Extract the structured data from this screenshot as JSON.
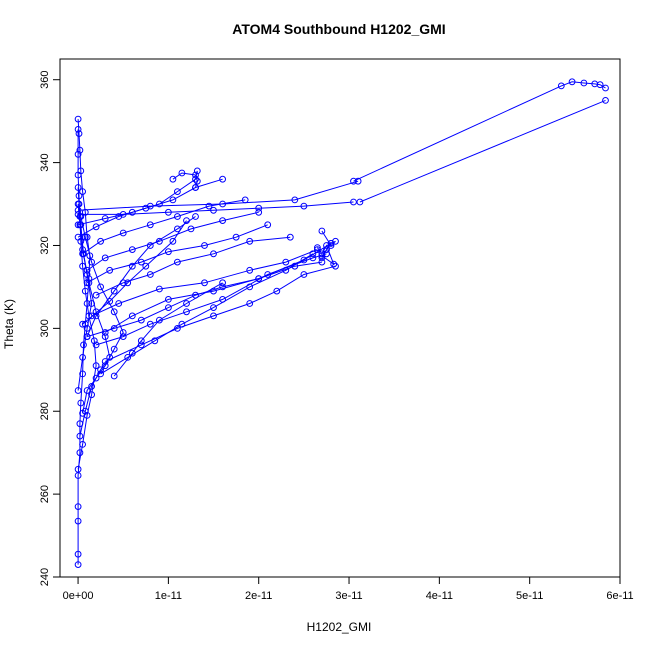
{
  "chart_data": {
    "type": "line",
    "title": "ATOM4 Southbound H1202_GMI",
    "xlabel": "H1202_GMI",
    "ylabel": "Theta (K)",
    "xlim": [
      -2e-12,
      6e-11
    ],
    "ylim": [
      240,
      365
    ],
    "x_ticks": [
      0,
      1e-11,
      2e-11,
      3e-11,
      4e-11,
      5e-11,
      6e-11
    ],
    "x_tick_labels": [
      "0e+00",
      "1e-11",
      "2e-11",
      "3e-11",
      "4e-11",
      "5e-11",
      "6e-11"
    ],
    "y_ticks": [
      240,
      260,
      280,
      300,
      320,
      340,
      360
    ],
    "y_tick_labels": [
      "240",
      "260",
      "280",
      "300",
      "320",
      "340",
      "360"
    ],
    "marker": "open-circle",
    "grid": false,
    "color": "#0000ff",
    "series": [
      {
        "points": [
          [
            0.0,
            243.0
          ],
          [
            0.0,
            245.5
          ],
          [
            0.0,
            253.5
          ],
          [
            0.0,
            257.0
          ],
          [
            0.0,
            264.5
          ],
          [
            2e-13,
            270.0
          ],
          [
            2e-13,
            277.0
          ],
          [
            3e-13,
            282.0
          ],
          [
            5e-13,
            289.0
          ],
          [
            6e-13,
            296.0
          ],
          [
            8e-13,
            301.0
          ],
          [
            1e-12,
            306.0
          ],
          [
            1.2e-12,
            312.0
          ],
          [
            1.3e-12,
            317.5
          ],
          [
            1e-12,
            322.0
          ],
          [
            8e-13,
            328.0
          ],
          [
            5e-13,
            333.0
          ],
          [
            3e-13,
            338.0
          ],
          [
            2e-13,
            343.0
          ],
          [
            1e-13,
            347.0
          ],
          [
            0.0,
            350.5
          ]
        ]
      },
      {
        "points": [
          [
            0.0,
            266.0
          ],
          [
            5e-13,
            272.0
          ],
          [
            1e-12,
            279.0
          ],
          [
            1.5e-12,
            284.0
          ],
          [
            2e-12,
            291.0
          ],
          [
            1.8e-12,
            297.0
          ],
          [
            1.2e-12,
            303.0
          ],
          [
            8e-13,
            309.0
          ],
          [
            5e-13,
            315.0
          ],
          [
            3e-13,
            321.0
          ],
          [
            2e-13,
            327.0
          ],
          [
            1e-13,
            332.0
          ],
          [
            0.0,
            337.0
          ],
          [
            0.0,
            342.0
          ],
          [
            0.0,
            348.0
          ]
        ]
      },
      {
        "points": [
          [
            2e-13,
            274.0
          ],
          [
            8e-13,
            280.0
          ],
          [
            1.5e-12,
            286.0
          ],
          [
            2.5e-12,
            290.0
          ],
          [
            3.5e-12,
            293.0
          ],
          [
            3e-12,
            298.0
          ],
          [
            2e-12,
            304.0
          ],
          [
            1.2e-12,
            311.0
          ],
          [
            6e-13,
            318.0
          ],
          [
            3e-13,
            325.0
          ],
          [
            1e-13,
            330.0
          ],
          [
            0.0,
            334.0
          ]
        ]
      },
      {
        "points": [
          [
            5e-13,
            279.5
          ],
          [
            1e-12,
            285.0
          ],
          [
            2e-12,
            288.0
          ],
          [
            3e-12,
            291.0
          ],
          [
            4e-12,
            295.0
          ],
          [
            5e-12,
            299.0
          ],
          [
            4e-12,
            304.0
          ],
          [
            2.5e-12,
            310.0
          ],
          [
            1.5e-12,
            316.0
          ],
          [
            8e-13,
            322.0
          ],
          [
            3e-13,
            327.0
          ]
        ]
      },
      {
        "points": [
          [
            0.0,
            285.0
          ],
          [
            5e-13,
            293.0
          ],
          [
            1e-12,
            300.0
          ],
          [
            1.5e-12,
            306.0
          ],
          [
            1e-12,
            313.0
          ],
          [
            5e-13,
            319.0
          ],
          [
            2e-13,
            325.0
          ],
          [
            0.0,
            330.0
          ]
        ]
      },
      {
        "points": [
          [
            1e-12,
            298.0
          ],
          [
            4e-12,
            300.0
          ],
          [
            7e-12,
            302.0
          ],
          [
            1e-11,
            305.0
          ],
          [
            1.3e-11,
            308.0
          ],
          [
            1.6e-11,
            310.0
          ],
          [
            2e-11,
            312.0
          ],
          [
            2.4e-11,
            315.0
          ],
          [
            2.7e-11,
            316.0
          ]
        ]
      },
      {
        "points": [
          [
            2e-12,
            296.0
          ],
          [
            5e-12,
            298.0
          ],
          [
            8e-12,
            301.0
          ],
          [
            1.2e-11,
            304.0
          ],
          [
            1.6e-11,
            307.0
          ],
          [
            2.1e-11,
            313.0
          ],
          [
            2.6e-11,
            317.0
          ],
          [
            2.75e-11,
            318.0
          ]
        ]
      },
      {
        "points": [
          [
            1.5e-12,
            303.0
          ],
          [
            4.5e-12,
            306.0
          ],
          [
            9e-12,
            309.5
          ],
          [
            1.4e-11,
            311.0
          ],
          [
            1.9e-11,
            314.0
          ],
          [
            2.3e-11,
            316.0
          ],
          [
            2.65e-11,
            319.0
          ]
        ]
      },
      {
        "points": [
          [
            3e-12,
            299.0
          ],
          [
            6e-12,
            303.0
          ],
          [
            1e-11,
            307.0
          ],
          [
            1.5e-11,
            309.0
          ],
          [
            2e-11,
            312.0
          ],
          [
            2.5e-11,
            316.5
          ],
          [
            2.8e-11,
            320.5
          ]
        ]
      },
      {
        "points": [
          [
            2e-12,
            308.0
          ],
          [
            5e-12,
            311.0
          ],
          [
            8e-12,
            313.0
          ],
          [
            1.1e-11,
            316.0
          ],
          [
            1.5e-11,
            318.0
          ],
          [
            1.9e-11,
            321.0
          ],
          [
            2.35e-11,
            322.0
          ]
        ]
      },
      {
        "points": [
          [
            1e-12,
            311.0
          ],
          [
            3.5e-12,
            314.0
          ],
          [
            7e-12,
            316.0
          ],
          [
            1e-11,
            318.5
          ],
          [
            1.4e-11,
            320.0
          ],
          [
            1.75e-11,
            322.0
          ],
          [
            2.1e-11,
            325.0
          ]
        ]
      },
      {
        "points": [
          [
            1e-12,
            314.0
          ],
          [
            3e-12,
            317.0
          ],
          [
            6e-12,
            319.0
          ],
          [
            9e-12,
            321.0
          ],
          [
            1.25e-11,
            324.0
          ],
          [
            1.6e-11,
            326.0
          ],
          [
            2e-11,
            328.0
          ]
        ]
      },
      {
        "points": [
          [
            5e-13,
            318.0
          ],
          [
            2.5e-12,
            321.0
          ],
          [
            5e-12,
            323.0
          ],
          [
            8e-12,
            325.0
          ],
          [
            1.1e-11,
            327.0
          ],
          [
            1.45e-11,
            329.5
          ],
          [
            1.85e-11,
            331.0
          ]
        ]
      },
      {
        "points": [
          [
            0.0,
            322.0
          ],
          [
            2e-12,
            324.5
          ],
          [
            4.5e-12,
            327.0
          ],
          [
            7.5e-12,
            329.0
          ],
          [
            1.05e-11,
            331.0
          ],
          [
            1.3e-11,
            334.0
          ],
          [
            1.6e-11,
            336.0
          ]
        ]
      },
      {
        "points": [
          [
            0.0,
            325.0
          ],
          [
            3e-12,
            326.5
          ],
          [
            6e-12,
            328.0
          ],
          [
            9e-12,
            330.0
          ],
          [
            1.1e-11,
            333.0
          ],
          [
            1.3e-11,
            336.0
          ],
          [
            1.32e-11,
            338.0
          ]
        ]
      },
      {
        "points": [
          [
            3e-12,
            292.0
          ],
          [
            7e-12,
            296.0
          ],
          [
            1.1e-11,
            300.0
          ],
          [
            1.5e-11,
            303.0
          ],
          [
            1.9e-11,
            306.0
          ],
          [
            2.2e-11,
            309.0
          ],
          [
            2.5e-11,
            313.0
          ],
          [
            2.85e-11,
            315.0
          ]
        ]
      },
      {
        "points": [
          [
            2.5e-12,
            289.0
          ],
          [
            5.5e-12,
            293.0
          ],
          [
            8.5e-12,
            297.0
          ],
          [
            1.15e-11,
            301.0
          ],
          [
            1.5e-11,
            305.0
          ],
          [
            1.9e-11,
            310.0
          ],
          [
            2.3e-11,
            314.0
          ],
          [
            2.6e-11,
            318.0
          ]
        ]
      },
      {
        "points": [
          [
            4e-12,
            288.5
          ],
          [
            6e-12,
            294.0
          ],
          [
            7e-12,
            297.0
          ],
          [
            9e-12,
            302.0
          ],
          [
            1.2e-11,
            306.0
          ],
          [
            1.6e-11,
            311.0
          ]
        ]
      },
      {
        "points": [
          [
            5e-13,
            301.0
          ],
          [
            3.5e-12,
            306.5
          ],
          [
            5.5e-12,
            311.0
          ],
          [
            7.5e-12,
            315.0
          ],
          [
            1.05e-11,
            321.0
          ],
          [
            1.2e-11,
            326.0
          ]
        ]
      },
      {
        "points": [
          [
            1e-12,
            298.0
          ],
          [
            2e-12,
            303.0
          ],
          [
            4e-12,
            309.0
          ],
          [
            6e-12,
            315.0
          ],
          [
            8e-12,
            320.0
          ],
          [
            1.1e-11,
            324.0
          ],
          [
            1.3e-11,
            327.0
          ]
        ]
      },
      {
        "points": [
          [
            0.0,
            327.5
          ],
          [
            5e-12,
            327.5
          ],
          [
            1e-11,
            328.0
          ],
          [
            1.5e-11,
            328.5
          ],
          [
            2e-11,
            329.0
          ],
          [
            2.5e-11,
            329.5
          ],
          [
            3.05e-11,
            330.5
          ]
        ]
      },
      {
        "points": [
          [
            0.0,
            328.5
          ],
          [
            8e-12,
            329.5
          ],
          [
            1.6e-11,
            330.0
          ],
          [
            2.4e-11,
            331.0
          ],
          [
            3.1e-11,
            335.5
          ]
        ]
      },
      {
        "points": [
          [
            3.05e-11,
            335.5
          ],
          [
            5.35e-11,
            358.5
          ],
          [
            5.47e-11,
            359.5
          ],
          [
            5.6e-11,
            359.2
          ],
          [
            5.72e-11,
            359.0
          ],
          [
            5.78e-11,
            358.8
          ],
          [
            5.84e-11,
            358.0
          ]
        ]
      },
      {
        "points": [
          [
            3.12e-11,
            330.5
          ],
          [
            5.84e-11,
            355.0
          ]
        ]
      },
      {
        "points": [
          [
            1.05e-11,
            336.0
          ],
          [
            1.15e-11,
            337.5
          ],
          [
            1.3e-11,
            337.0
          ],
          [
            1.32e-11,
            335.5
          ],
          [
            1.3e-11,
            334.0
          ]
        ]
      },
      {
        "points": [
          [
            2.7e-11,
            317.0
          ],
          [
            2.75e-11,
            319.0
          ],
          [
            2.8e-11,
            320.5
          ],
          [
            2.85e-11,
            321.0
          ],
          [
            2.8e-11,
            320.0
          ],
          [
            2.7e-11,
            323.5
          ]
        ]
      },
      {
        "points": [
          [
            2.65e-11,
            319.5
          ],
          [
            2.7e-11,
            318.0
          ],
          [
            2.75e-11,
            320.0
          ],
          [
            2.83e-11,
            315.5
          ],
          [
            2.7e-11,
            317.5
          ]
        ]
      }
    ]
  }
}
